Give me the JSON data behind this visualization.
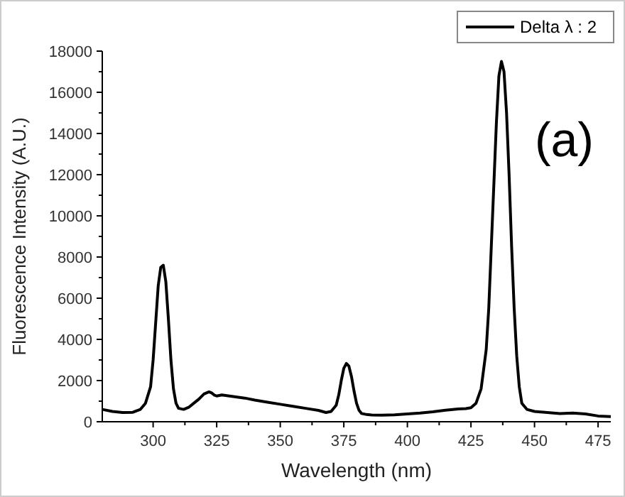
{
  "chart_data": {
    "type": "line",
    "xlabel": "Wavelength (nm)",
    "ylabel": "Fluorescence Intensity (A.U.)",
    "xlim": [
      280,
      480
    ],
    "ylim": [
      0,
      18000
    ],
    "xticks": [
      300,
      325,
      350,
      375,
      400,
      425,
      450,
      475
    ],
    "yticks": [
      0,
      2000,
      4000,
      6000,
      8000,
      10000,
      12000,
      14000,
      16000,
      18000
    ],
    "legend": "top right",
    "annotations": [
      "(a)"
    ],
    "series": [
      {
        "name": "Delta λ : 2",
        "color": "#000000",
        "x": [
          280,
          284,
          288,
          292,
          295,
          297,
          299,
          300,
          301,
          302,
          303,
          304,
          305,
          306,
          307,
          308,
          309,
          310,
          312,
          314,
          316,
          318,
          320,
          322,
          323,
          324,
          325,
          327,
          330,
          333,
          336,
          340,
          345,
          350,
          355,
          360,
          365,
          368,
          370,
          372,
          373,
          374,
          375,
          376,
          377,
          378,
          379,
          380,
          381,
          382,
          384,
          386,
          390,
          395,
          400,
          405,
          410,
          415,
          420,
          423,
          425,
          427,
          429,
          431,
          432,
          433,
          434,
          435,
          436,
          437,
          438,
          439,
          440,
          441,
          442,
          443,
          444,
          445,
          447,
          450,
          455,
          460,
          465,
          470,
          475,
          480
        ],
        "values": [
          600,
          500,
          450,
          460,
          600,
          900,
          1700,
          3000,
          4800,
          6600,
          7500,
          7600,
          6800,
          5000,
          3000,
          1600,
          900,
          650,
          600,
          700,
          900,
          1100,
          1350,
          1450,
          1400,
          1300,
          1250,
          1300,
          1250,
          1200,
          1150,
          1050,
          950,
          850,
          750,
          650,
          550,
          450,
          500,
          800,
          1300,
          2000,
          2600,
          2830,
          2700,
          2200,
          1500,
          900,
          550,
          400,
          350,
          330,
          320,
          340,
          380,
          420,
          480,
          560,
          620,
          640,
          680,
          900,
          1600,
          3500,
          5500,
          8500,
          11500,
          14500,
          16800,
          17500,
          17000,
          15000,
          12000,
          8500,
          5500,
          3200,
          1700,
          900,
          600,
          500,
          450,
          400,
          420,
          380,
          280,
          250
        ]
      }
    ]
  }
}
